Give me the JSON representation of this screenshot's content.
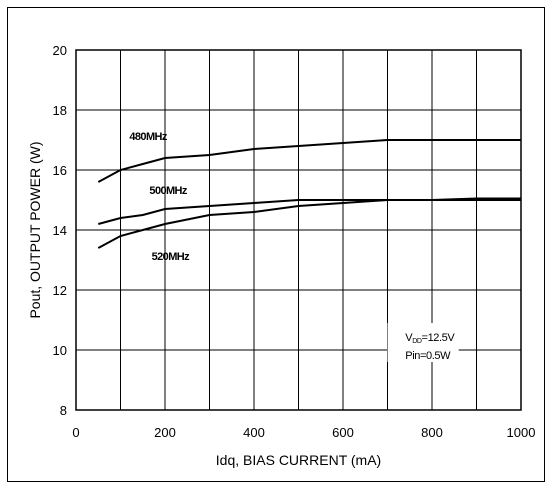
{
  "chart_data": {
    "type": "line",
    "xlabel": "Idq, BIAS CURRENT  (mA)",
    "ylabel": "Pout, OUTPUT POWER  (W)",
    "xlim": [
      0,
      1000
    ],
    "ylim": [
      8,
      20
    ],
    "xticks": [
      "0",
      "200",
      "400",
      "600",
      "800",
      "1000"
    ],
    "yticks": [
      "8",
      "10",
      "12",
      "14",
      "16",
      "18",
      "20"
    ],
    "grid": true,
    "series": [
      {
        "name": "480MHz",
        "color": "#000000",
        "x": [
          50,
          100,
          150,
          200,
          300,
          400,
          500,
          600,
          700,
          800,
          900,
          1000
        ],
        "y": [
          15.6,
          16.0,
          16.2,
          16.4,
          16.5,
          16.7,
          16.8,
          16.9,
          17.0,
          17.0,
          17.0,
          17.0
        ]
      },
      {
        "name": "500MHz",
        "color": "#000000",
        "x": [
          50,
          100,
          150,
          200,
          300,
          400,
          500,
          600,
          700,
          800,
          900,
          1000
        ],
        "y": [
          14.2,
          14.4,
          14.5,
          14.7,
          14.8,
          14.9,
          15.0,
          15.0,
          15.0,
          15.0,
          15.0,
          15.0
        ]
      },
      {
        "name": "520MHz",
        "color": "#000000",
        "x": [
          50,
          100,
          150,
          200,
          300,
          400,
          500,
          600,
          700,
          800,
          900,
          1000
        ],
        "y": [
          13.4,
          13.8,
          14.0,
          14.2,
          14.5,
          14.6,
          14.8,
          14.9,
          15.0,
          15.0,
          15.05,
          15.05
        ]
      }
    ],
    "annotations": [
      "VDD=12.5V",
      "Pin=0.5W"
    ],
    "annotation_parts": {
      "vdd": {
        "base": "V",
        "sub": "DD",
        "value": "=12.5V"
      },
      "pin": "Pin=0.5W"
    }
  }
}
